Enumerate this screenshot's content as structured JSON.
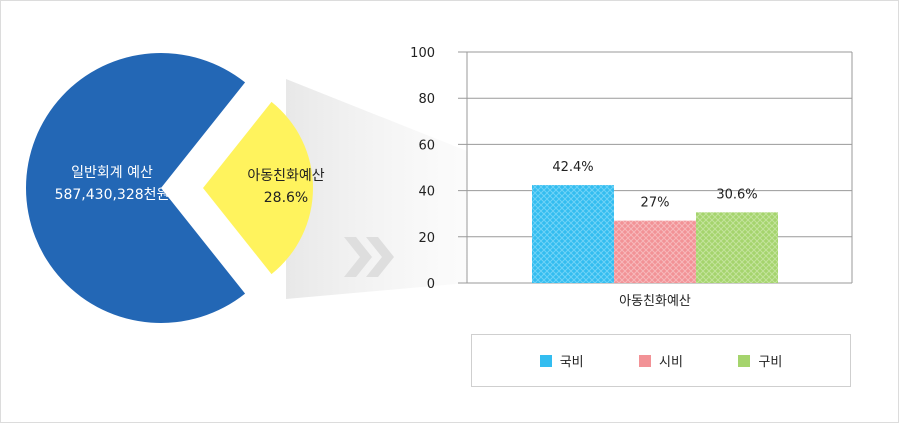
{
  "pie": {
    "main_label_line1": "일반회계 예산",
    "main_label_line2": "587,430,328천원",
    "slice_label_line1": "아동친화예산",
    "slice_label_line2": "28.6%",
    "main_color": "#2367b5",
    "slice_color": "#fff35d",
    "slice_percent": 28.6
  },
  "arrow_icon": "double-chevron-right-icon",
  "chart_data": {
    "type": "bar",
    "categories": [
      "아동친화예산"
    ],
    "series": [
      {
        "name": "국비",
        "values": [
          42.4
        ],
        "label": "42.4%",
        "color": "#33bdf0"
      },
      {
        "name": "시비",
        "values": [
          27
        ],
        "label": "27%",
        "color": "#f29296"
      },
      {
        "name": "구비",
        "values": [
          30.6
        ],
        "label": "30.6%",
        "color": "#a5d46d"
      }
    ],
    "ylim": [
      0,
      100
    ],
    "yticks": [
      "0",
      "20",
      "40",
      "60",
      "80",
      "100"
    ],
    "grid": true,
    "legend": "bottom"
  },
  "legend": {
    "items": [
      {
        "label": "국비",
        "color": "#33bdf0"
      },
      {
        "label": "시비",
        "color": "#f29296"
      },
      {
        "label": "구비",
        "color": "#a5d46d"
      }
    ]
  }
}
